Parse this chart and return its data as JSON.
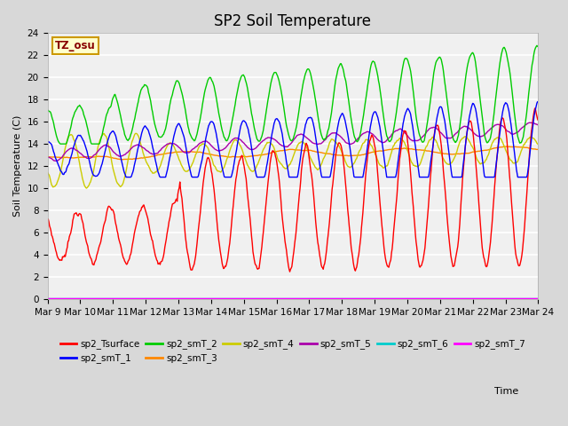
{
  "title": "SP2 Soil Temperature",
  "ylabel": "Soil Temperature (C)",
  "ylim": [
    0,
    24
  ],
  "x_tick_labels": [
    "Mar 9",
    "Mar 10",
    "Mar 11",
    "Mar 12",
    "Mar 13",
    "Mar 14",
    "Mar 15",
    "Mar 16",
    "Mar 17",
    "Mar 18",
    "Mar 19",
    "Mar 20",
    "Mar 21",
    "Mar 22",
    "Mar 23",
    "Mar 24"
  ],
  "annotation": "TZ_osu",
  "annotation_color": "#880000",
  "annotation_bg": "#ffffcc",
  "annotation_border": "#cc9900",
  "fig_bg": "#d8d8d8",
  "plot_bg": "#f0f0f0",
  "grid_color": "#ffffff",
  "series_colors": {
    "sp2_Tsurface": "#ff0000",
    "sp2_smT_1": "#0000ff",
    "sp2_smT_2": "#00cc00",
    "sp2_smT_3": "#ff8800",
    "sp2_smT_4": "#cccc00",
    "sp2_smT_5": "#aa00aa",
    "sp2_smT_6": "#00cccc",
    "sp2_smT_7": "#ff00ff"
  },
  "legend_labels": [
    "sp2_Tsurface",
    "sp2_smT_1",
    "sp2_smT_2",
    "sp2_smT_3",
    "sp2_smT_4",
    "sp2_smT_5",
    "sp2_smT_6",
    "sp2_smT_7"
  ],
  "legend_colors": [
    "#ff0000",
    "#0000ff",
    "#00cc00",
    "#ff8800",
    "#cccc00",
    "#aa00aa",
    "#00cccc",
    "#ff00ff"
  ]
}
